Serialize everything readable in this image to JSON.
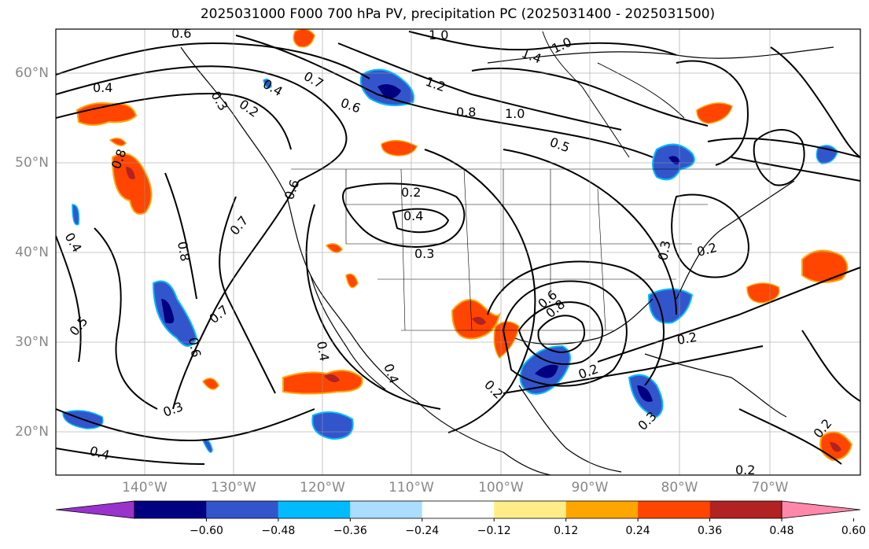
{
  "title": "2025031000 F000 700 hPa PV, precipitation PC (2025031400 - 2025031500)",
  "lat_labels": [
    "60°N",
    "50°N",
    "40°N",
    "30°N",
    "20°N"
  ],
  "lon_labels": [
    "140°W",
    "130°W",
    "120°W",
    "110°W",
    "100°W",
    "90°W",
    "80°W",
    "70°W"
  ],
  "colorbar": {
    "ticks": [
      "−0.60",
      "−0.48",
      "−0.36",
      "−0.24",
      "−0.12",
      "0.12",
      "0.24",
      "0.36",
      "0.48",
      "0.60"
    ],
    "colors": [
      "#9933cc",
      "#000080",
      "#3355cc",
      "#00bbff",
      "#aaddff",
      "#ffffff",
      "#ffee88",
      "#ffa500",
      "#ff4500",
      "#b22222",
      "#ff88aa"
    ]
  },
  "contour_labels": [
    "0.6",
    "1.0",
    "0.4",
    "0.7",
    "0.3",
    "0.2",
    "0.6",
    "1.2",
    "1.4",
    "1.0",
    "0.8",
    "1.0",
    "0.5",
    "0.8",
    "0.6",
    "0.2",
    "0.4",
    "0.3",
    "0.4",
    "0.8",
    "0.7",
    "0.4",
    "0.5",
    "0.7",
    "0.6",
    "0.4",
    "0.4",
    "0.3",
    "0.4",
    "0.2",
    "0.6",
    "0.8",
    "0.2",
    "0.2",
    "0.3",
    "0.2",
    "0.2",
    "0.2",
    "0.3"
  ]
}
